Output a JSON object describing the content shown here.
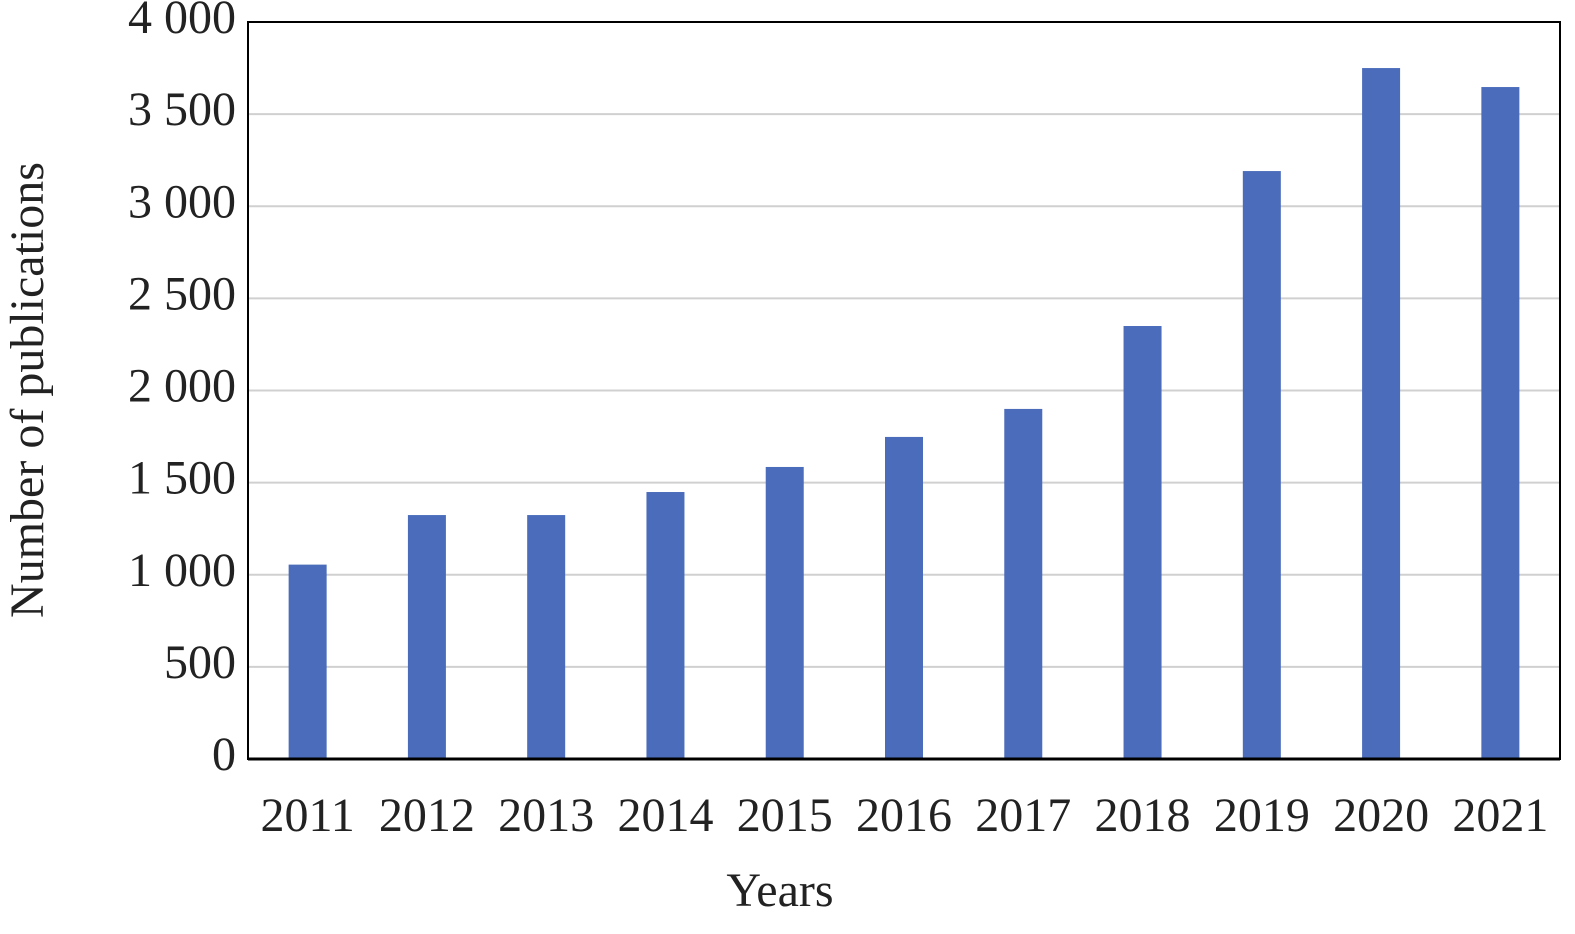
{
  "chart_data": {
    "type": "bar",
    "x_label": "Years",
    "y_label": "Number of publications",
    "categories": [
      "2011",
      "2012",
      "2013",
      "2014",
      "2015",
      "2016",
      "2017",
      "2018",
      "2019",
      "2020",
      "2021"
    ],
    "values": [
      1055,
      1324,
      1324,
      1449,
      1585,
      1748,
      1900,
      2350,
      3191,
      3750,
      3647
    ],
    "color": "#4a6cbb",
    "ylim": [
      0,
      4000
    ],
    "yticks": [
      0,
      500,
      {
        "value": 1000,
        "label": "1 000"
      },
      {
        "value": 1500,
        "label": "1 500"
      },
      {
        "value": 2000,
        "label": "2 000"
      },
      {
        "value": 2500,
        "label": "2 500"
      },
      {
        "value": 3000,
        "label": "3 000"
      },
      {
        "value": 3500,
        "label": "3 500"
      },
      {
        "value": 4000,
        "label": "4 000"
      }
    ],
    "grid": true
  }
}
